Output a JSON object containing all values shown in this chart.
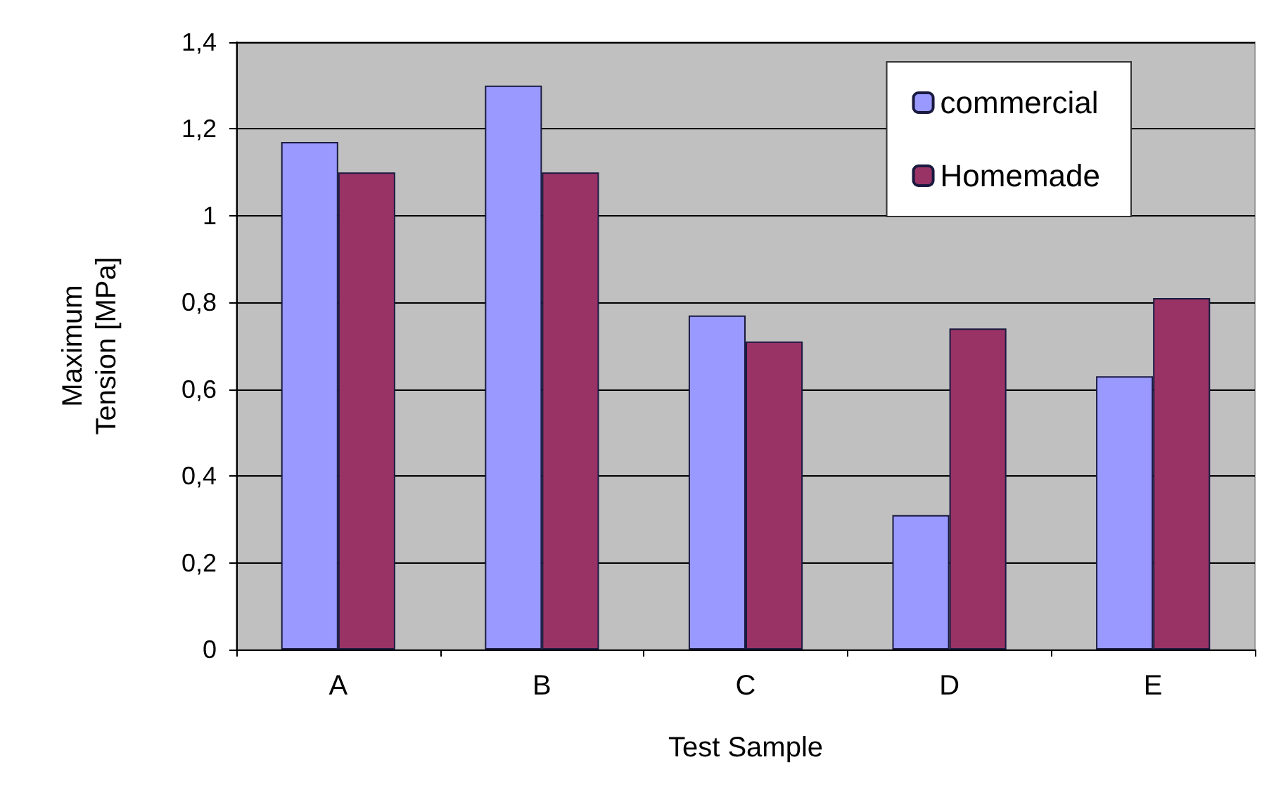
{
  "chart_data": {
    "type": "bar",
    "xlabel": "Test Sample",
    "ylabel": "Maximum\nTension [MPa]",
    "categories": [
      "A",
      "B",
      "C",
      "D",
      "E"
    ],
    "series": [
      {
        "name": "commercial",
        "color": "#9999ff",
        "values": [
          1.17,
          1.3,
          0.77,
          0.31,
          0.63
        ]
      },
      {
        "name": "Homemade",
        "color": "#993366",
        "values": [
          1.1,
          1.1,
          0.71,
          0.74,
          0.81
        ]
      }
    ],
    "ylim": [
      0,
      1.4
    ],
    "yticks": [
      0,
      {
        "value": 0.2,
        "label": "0,2"
      },
      {
        "value": 0.4,
        "label": "0,4"
      },
      {
        "value": 0.6,
        "label": "0,6"
      },
      {
        "value": 0.8,
        "label": "0,8"
      },
      1,
      {
        "value": 1.2,
        "label": "1,2"
      },
      {
        "value": 1.4,
        "label": "1,4"
      }
    ],
    "grid": "y",
    "legend": "top right"
  }
}
